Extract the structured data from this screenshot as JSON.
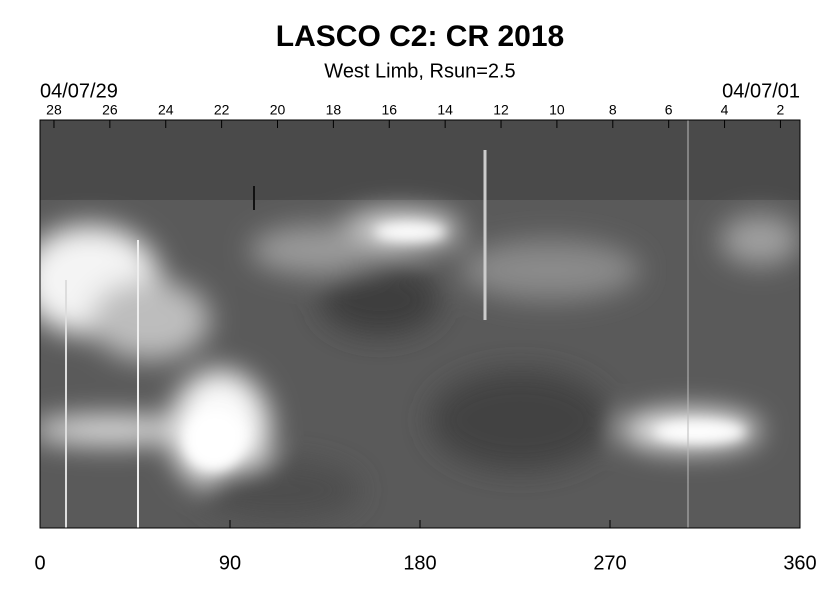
{
  "chart_data": {
    "type": "image",
    "title": "LASCO C2: CR 2018",
    "subtitle": "West Limb, Rsun=2.5",
    "start_date": "04/07/29",
    "end_date": "04/07/01",
    "xlim": [
      0,
      360
    ],
    "xticks": [
      0,
      90,
      180,
      270,
      360
    ],
    "x2lim": [
      28.5,
      1.3
    ],
    "x2ticks": [
      28,
      26,
      24,
      22,
      20,
      18,
      16,
      14,
      12,
      10,
      8,
      6,
      4,
      2
    ]
  }
}
